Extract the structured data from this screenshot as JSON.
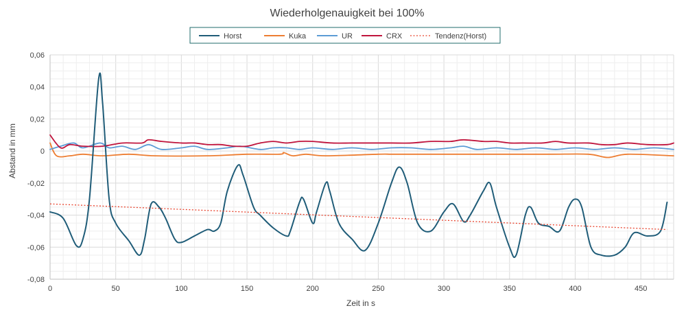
{
  "chart_data": {
    "type": "line",
    "title": "Wiederholgenauigkeit bei 100%",
    "xlabel": "Zeit in s",
    "ylabel": "Abstand in mm",
    "xlim": [
      0,
      475
    ],
    "ylim": [
      -0.08,
      0.06
    ],
    "x_ticks": [
      0,
      50,
      100,
      150,
      200,
      250,
      300,
      350,
      400,
      450
    ],
    "y_ticks": [
      0.06,
      0.04,
      0.02,
      0,
      -0.02,
      -0.04,
      -0.06,
      -0.08
    ],
    "y_tick_labels": [
      "0,06",
      "0,04",
      "0,02",
      "0",
      "-0,02",
      "-0,04",
      "-0,06",
      "-0,08"
    ],
    "x_tick_labels": [
      "0",
      "50",
      "100",
      "150",
      "200",
      "250",
      "300",
      "350",
      "400",
      "450"
    ],
    "grid": true,
    "legend_position": "top",
    "series": [
      {
        "name": "Horst",
        "color": "#1f5c78",
        "style": "solid",
        "points": [
          [
            0,
            -0.038
          ],
          [
            10,
            -0.042
          ],
          [
            20,
            -0.059
          ],
          [
            25,
            -0.055
          ],
          [
            30,
            -0.03
          ],
          [
            37,
            0.045
          ],
          [
            40,
            0.03
          ],
          [
            45,
            -0.03
          ],
          [
            50,
            -0.045
          ],
          [
            60,
            -0.056
          ],
          [
            68,
            -0.065
          ],
          [
            72,
            -0.055
          ],
          [
            77,
            -0.033
          ],
          [
            83,
            -0.035
          ],
          [
            88,
            -0.042
          ],
          [
            95,
            -0.055
          ],
          [
            100,
            -0.057
          ],
          [
            110,
            -0.053
          ],
          [
            120,
            -0.049
          ],
          [
            125,
            -0.05
          ],
          [
            130,
            -0.045
          ],
          [
            135,
            -0.025
          ],
          [
            143,
            -0.009
          ],
          [
            147,
            -0.015
          ],
          [
            155,
            -0.035
          ],
          [
            160,
            -0.04
          ],
          [
            170,
            -0.048
          ],
          [
            180,
            -0.053
          ],
          [
            183,
            -0.05
          ],
          [
            190,
            -0.032
          ],
          [
            193,
            -0.03
          ],
          [
            200,
            -0.045
          ],
          [
            203,
            -0.038
          ],
          [
            210,
            -0.02
          ],
          [
            213,
            -0.025
          ],
          [
            220,
            -0.045
          ],
          [
            230,
            -0.055
          ],
          [
            240,
            -0.062
          ],
          [
            250,
            -0.045
          ],
          [
            260,
            -0.02
          ],
          [
            266,
            -0.01
          ],
          [
            272,
            -0.02
          ],
          [
            280,
            -0.045
          ],
          [
            290,
            -0.05
          ],
          [
            300,
            -0.038
          ],
          [
            307,
            -0.033
          ],
          [
            315,
            -0.044
          ],
          [
            320,
            -0.04
          ],
          [
            330,
            -0.025
          ],
          [
            335,
            -0.02
          ],
          [
            340,
            -0.035
          ],
          [
            350,
            -0.06
          ],
          [
            355,
            -0.065
          ],
          [
            362,
            -0.04
          ],
          [
            366,
            -0.035
          ],
          [
            372,
            -0.045
          ],
          [
            380,
            -0.047
          ],
          [
            388,
            -0.05
          ],
          [
            395,
            -0.035
          ],
          [
            400,
            -0.03
          ],
          [
            405,
            -0.035
          ],
          [
            412,
            -0.06
          ],
          [
            420,
            -0.065
          ],
          [
            430,
            -0.065
          ],
          [
            438,
            -0.06
          ],
          [
            445,
            -0.051
          ],
          [
            455,
            -0.053
          ],
          [
            465,
            -0.05
          ],
          [
            470,
            -0.032
          ]
        ]
      },
      {
        "name": "Kuka",
        "color": "#ed7d31",
        "style": "solid",
        "points": [
          [
            0,
            0.005
          ],
          [
            5,
            -0.003
          ],
          [
            15,
            -0.003
          ],
          [
            25,
            -0.002
          ],
          [
            40,
            -0.003
          ],
          [
            60,
            -0.002
          ],
          [
            80,
            -0.003
          ],
          [
            120,
            -0.003
          ],
          [
            150,
            -0.002
          ],
          [
            175,
            -0.002
          ],
          [
            178,
            -0.001
          ],
          [
            185,
            -0.003
          ],
          [
            195,
            -0.002
          ],
          [
            210,
            -0.003
          ],
          [
            250,
            -0.002
          ],
          [
            260,
            -0.002
          ],
          [
            280,
            -0.002
          ],
          [
            300,
            -0.002
          ],
          [
            340,
            -0.002
          ],
          [
            380,
            -0.002
          ],
          [
            410,
            -0.002
          ],
          [
            425,
            -0.004
          ],
          [
            440,
            -0.002
          ],
          [
            475,
            -0.003
          ]
        ]
      },
      {
        "name": "UR",
        "color": "#5b9bd5",
        "style": "solid",
        "points": [
          [
            0,
            0.001
          ],
          [
            8,
            0.003
          ],
          [
            18,
            0.005
          ],
          [
            25,
            0.002
          ],
          [
            38,
            0.005
          ],
          [
            45,
            0.002
          ],
          [
            55,
            0.003
          ],
          [
            65,
            0.001
          ],
          [
            75,
            0.004
          ],
          [
            85,
            0.001
          ],
          [
            100,
            0.002
          ],
          [
            110,
            0.003
          ],
          [
            120,
            0.001
          ],
          [
            135,
            0.002
          ],
          [
            145,
            0.003
          ],
          [
            160,
            0.001
          ],
          [
            170,
            0.002
          ],
          [
            180,
            0.002
          ],
          [
            190,
            0.001
          ],
          [
            200,
            0.002
          ],
          [
            215,
            0.001
          ],
          [
            230,
            0.002
          ],
          [
            245,
            0.001
          ],
          [
            260,
            0.002
          ],
          [
            275,
            0.002
          ],
          [
            290,
            0.001
          ],
          [
            305,
            0.002
          ],
          [
            315,
            0.003
          ],
          [
            325,
            0.001
          ],
          [
            340,
            0.002
          ],
          [
            355,
            0.001
          ],
          [
            370,
            0.002
          ],
          [
            385,
            0.001
          ],
          [
            400,
            0.002
          ],
          [
            415,
            0.001
          ],
          [
            430,
            0.002
          ],
          [
            445,
            0.001
          ],
          [
            460,
            0.002
          ],
          [
            475,
            0.001
          ]
        ]
      },
      {
        "name": "CRX",
        "color": "#c0143c",
        "style": "solid",
        "points": [
          [
            0,
            0.01
          ],
          [
            8,
            0.002
          ],
          [
            15,
            0.004
          ],
          [
            25,
            0.003
          ],
          [
            40,
            0.003
          ],
          [
            55,
            0.005
          ],
          [
            70,
            0.005
          ],
          [
            75,
            0.007
          ],
          [
            85,
            0.006
          ],
          [
            100,
            0.005
          ],
          [
            110,
            0.005
          ],
          [
            120,
            0.004
          ],
          [
            130,
            0.004
          ],
          [
            140,
            0.003
          ],
          [
            150,
            0.003
          ],
          [
            160,
            0.005
          ],
          [
            170,
            0.006
          ],
          [
            180,
            0.005
          ],
          [
            190,
            0.006
          ],
          [
            200,
            0.006
          ],
          [
            215,
            0.005
          ],
          [
            230,
            0.005
          ],
          [
            245,
            0.005
          ],
          [
            260,
            0.005
          ],
          [
            275,
            0.005
          ],
          [
            290,
            0.006
          ],
          [
            305,
            0.006
          ],
          [
            315,
            0.007
          ],
          [
            330,
            0.006
          ],
          [
            340,
            0.006
          ],
          [
            350,
            0.005
          ],
          [
            360,
            0.005
          ],
          [
            375,
            0.005
          ],
          [
            385,
            0.006
          ],
          [
            395,
            0.005
          ],
          [
            410,
            0.005
          ],
          [
            420,
            0.004
          ],
          [
            430,
            0.004
          ],
          [
            440,
            0.005
          ],
          [
            455,
            0.004
          ],
          [
            470,
            0.004
          ],
          [
            475,
            0.005
          ]
        ]
      },
      {
        "name": "Tendenz(Horst)",
        "color": "#e8412b",
        "style": "dotted",
        "points": [
          [
            0,
            -0.033
          ],
          [
            470,
            -0.049
          ]
        ]
      }
    ]
  }
}
